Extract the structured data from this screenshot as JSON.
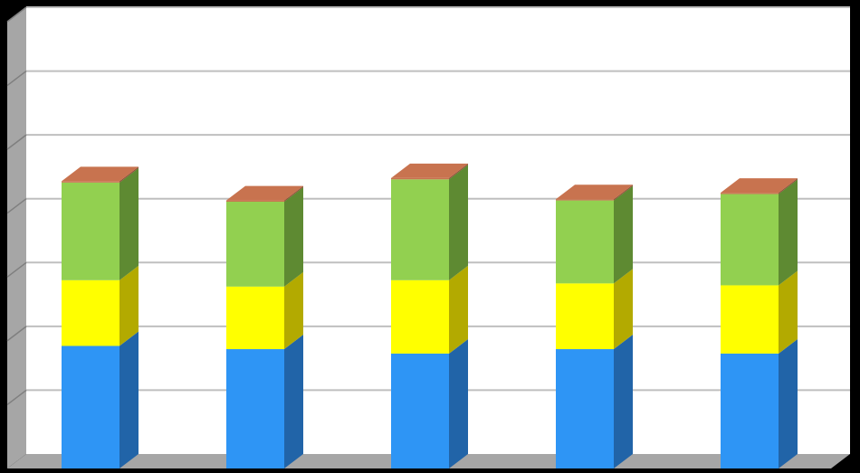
{
  "chart_data": {
    "type": "bar",
    "stacked": true,
    "three_d": true,
    "title": "",
    "xlabel": "",
    "ylabel": "",
    "categories": [
      "",
      "",
      "",
      "",
      ""
    ],
    "ylim": [
      0,
      7
    ],
    "grid": true,
    "legend": "none",
    "series": [
      {
        "color": "#2E95F5",
        "side_color": "#2164A8",
        "values": [
          1.92,
          1.87,
          1.8,
          1.87,
          1.8
        ]
      },
      {
        "color": "#FFFF00",
        "side_color": "#B3AA00",
        "values": [
          1.03,
          0.98,
          1.15,
          1.03,
          1.07
        ]
      },
      {
        "color": "#92D050",
        "side_color": "#5E8A32",
        "values": [
          1.53,
          1.33,
          1.58,
          1.3,
          1.43
        ]
      },
      {
        "color": "#C8734F",
        "side_color": "#8E4F35",
        "values": [
          0.02,
          0.02,
          0.02,
          0.02,
          0.02
        ]
      }
    ],
    "wall_color": "#FFFFFF",
    "gridline_color": "#BFBFBF",
    "background_color": "#000000",
    "side_wall_color": "#A6A6A6",
    "floor_color": "#A6A6A6"
  }
}
